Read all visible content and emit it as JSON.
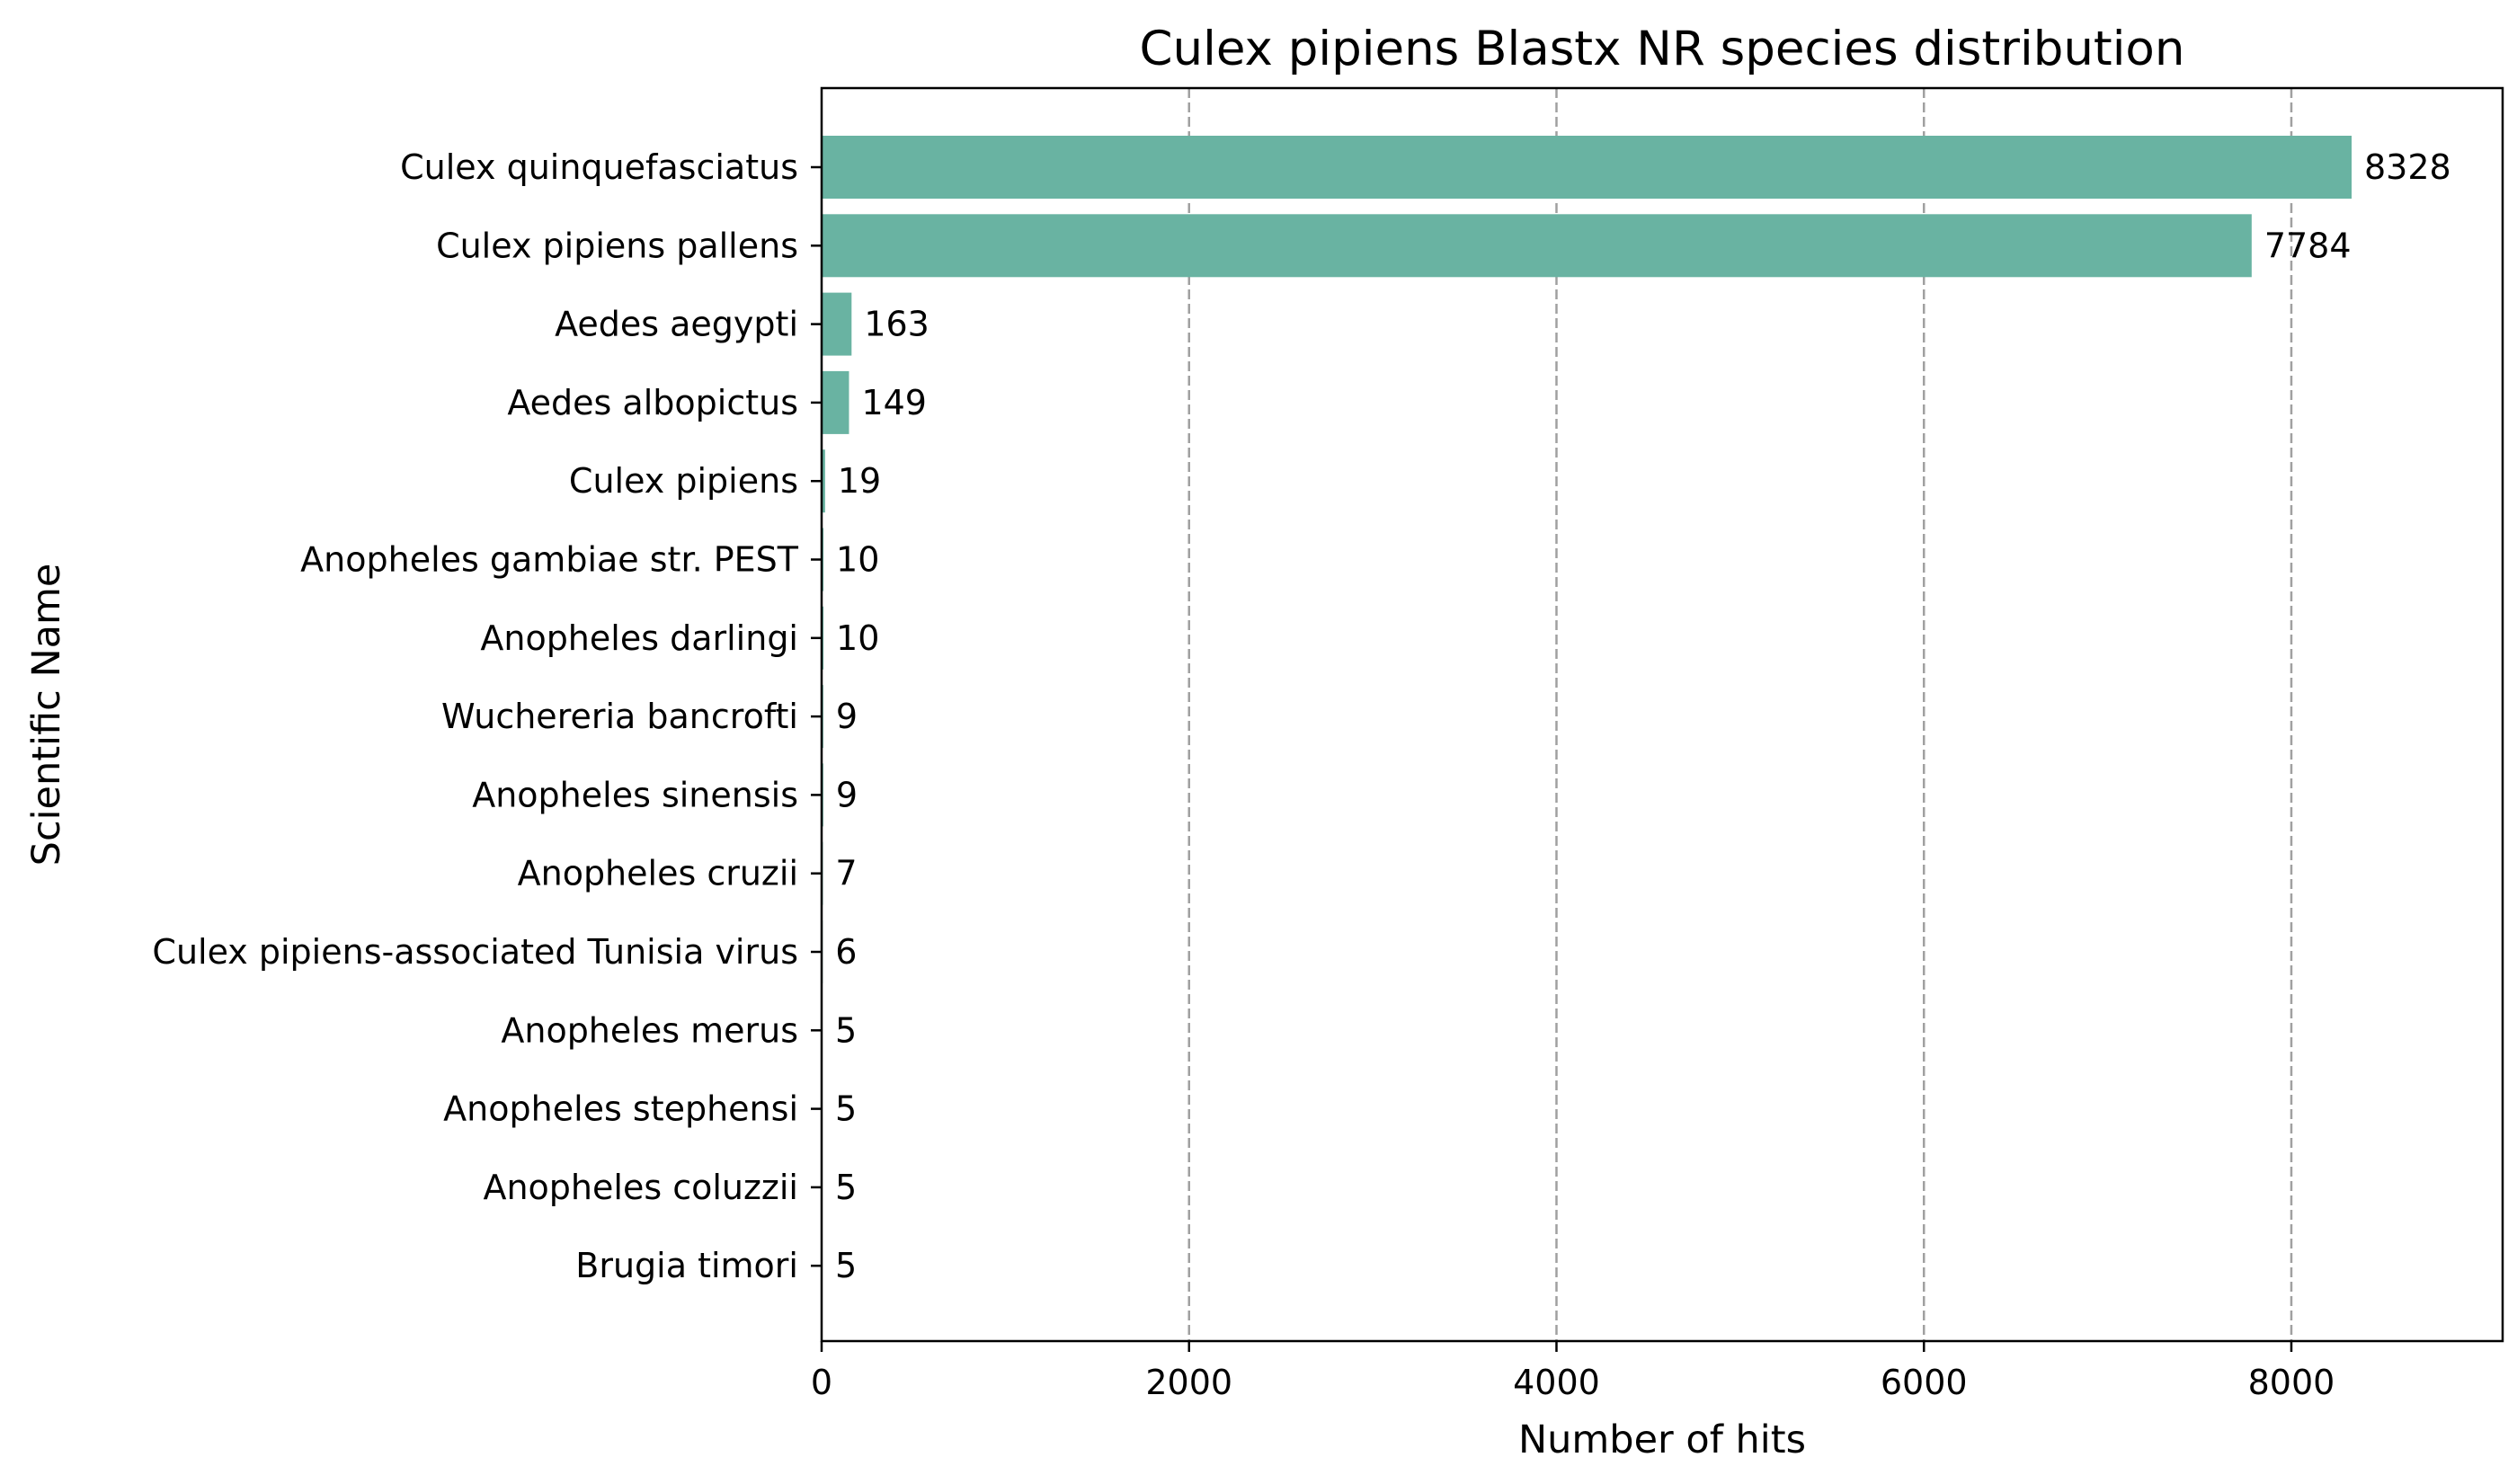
{
  "chart_data": {
    "type": "bar",
    "orientation": "horizontal",
    "title": "Culex pipiens Blastx NR species distribution",
    "xlabel": "Number of hits",
    "ylabel": "Scientific Name",
    "xlim": [
      0,
      9150
    ],
    "xticks": [
      0,
      2000,
      4000,
      6000,
      8000
    ],
    "grid": "x-dashed",
    "bar_color": "#69b3a2",
    "categories": [
      "Culex quinquefasciatus",
      "Culex pipiens pallens",
      "Aedes aegypti",
      "Aedes albopictus",
      "Culex pipiens",
      "Anopheles gambiae str. PEST",
      "Anopheles darlingi",
      "Wuchereria bancrofti",
      "Anopheles sinensis",
      "Anopheles cruzii",
      "Culex pipiens-associated Tunisia virus",
      "Anopheles merus",
      "Anopheles stephensi",
      "Anopheles coluzzii",
      "Brugia timori"
    ],
    "values": [
      8328,
      7784,
      163,
      149,
      19,
      10,
      10,
      9,
      9,
      7,
      6,
      5,
      5,
      5,
      5
    ]
  }
}
